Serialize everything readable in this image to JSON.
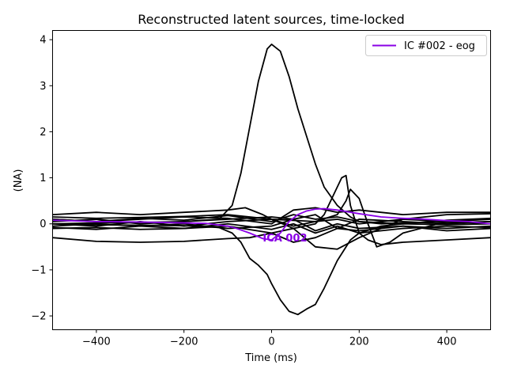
{
  "chart_data": {
    "type": "line",
    "title": "Reconstructed latent sources, time-locked",
    "xlabel": "Time (ms)",
    "ylabel": "(NA)",
    "xlim": [
      -500,
      500
    ],
    "ylim": [
      -2.3,
      4.2
    ],
    "xticks": [
      -400,
      -200,
      0,
      200,
      400
    ],
    "xtick_labels": [
      "−400",
      "−200",
      "0",
      "200",
      "400"
    ],
    "yticks": [
      -2,
      -1,
      0,
      1,
      2,
      3,
      4
    ],
    "ytick_labels": [
      "−2",
      "−1",
      "0",
      "1",
      "2",
      "3",
      "4"
    ],
    "grid": false,
    "legend_position": "top-right",
    "legend": [
      {
        "label": "IC #002 - eog",
        "color": "#8a00e6"
      }
    ],
    "annotations": [
      {
        "text": "ICA 002",
        "x": -20,
        "y": -0.3,
        "color": "#8a00e6"
      }
    ],
    "series": [
      {
        "name": "IC #002 - eog",
        "color": "#8a00e6",
        "x": [
          -500,
          -400,
          -300,
          -200,
          -150,
          -100,
          -80,
          -50,
          -20,
          0,
          20,
          40,
          60,
          80,
          100,
          120,
          150,
          200,
          250,
          300,
          350,
          400,
          450,
          500
        ],
        "y": [
          0.08,
          0.05,
          0.04,
          0.02,
          0.01,
          -0.05,
          -0.1,
          -0.2,
          -0.32,
          -0.35,
          -0.2,
          0.05,
          0.2,
          0.28,
          0.32,
          0.33,
          0.3,
          0.22,
          0.15,
          0.12,
          0.1,
          0.07,
          0.05,
          0.0
        ]
      },
      {
        "color": "#000000",
        "x": [
          -500,
          -400,
          -300,
          -200,
          -120,
          -90,
          -70,
          -50,
          -30,
          -10,
          0,
          20,
          40,
          60,
          80,
          100,
          120,
          150,
          180,
          200,
          250,
          300,
          400,
          500
        ],
        "y": [
          0.0,
          0.02,
          0.03,
          0.05,
          0.1,
          0.4,
          1.1,
          2.1,
          3.1,
          3.8,
          3.9,
          3.75,
          3.2,
          2.5,
          1.9,
          1.3,
          0.8,
          0.4,
          0.15,
          0.05,
          0.0,
          0.02,
          0.03,
          0.05
        ]
      },
      {
        "color": "#000000",
        "x": [
          -500,
          -400,
          -300,
          -200,
          -120,
          -90,
          -70,
          -50,
          -30,
          -10,
          0,
          20,
          40,
          60,
          80,
          100,
          120,
          150,
          180,
          200,
          250,
          300,
          400,
          500
        ],
        "y": [
          0.0,
          -0.02,
          -0.03,
          -0.04,
          -0.08,
          -0.2,
          -0.4,
          -0.75,
          -0.9,
          -1.1,
          -1.3,
          -1.65,
          -1.9,
          -1.97,
          -1.85,
          -1.75,
          -1.4,
          -0.8,
          -0.35,
          -0.2,
          -0.05,
          0.0,
          -0.02,
          0.0
        ]
      },
      {
        "color": "#000000",
        "x": [
          -500,
          -400,
          -300,
          -200,
          -100,
          -50,
          0,
          50,
          100,
          120,
          140,
          160,
          170,
          180,
          200,
          220,
          250,
          300,
          400,
          500
        ],
        "y": [
          -0.3,
          -0.38,
          -0.4,
          -0.38,
          -0.32,
          -0.3,
          -0.2,
          -0.1,
          0.0,
          0.2,
          0.6,
          1.0,
          1.05,
          0.4,
          -0.2,
          -0.35,
          -0.45,
          -0.4,
          -0.35,
          -0.3
        ]
      },
      {
        "color": "#000000",
        "x": [
          -500,
          -400,
          -300,
          -200,
          -100,
          0,
          100,
          150,
          170,
          180,
          200,
          220,
          240,
          270,
          300,
          400,
          500
        ],
        "y": [
          0.15,
          0.12,
          0.14,
          0.16,
          0.2,
          0.1,
          0.05,
          0.2,
          0.5,
          0.75,
          0.55,
          0.0,
          -0.5,
          -0.4,
          -0.2,
          0.05,
          0.1
        ]
      },
      {
        "color": "#000000",
        "x": [
          -500,
          -400,
          -300,
          -200,
          -100,
          -60,
          -20,
          0,
          50,
          100,
          150,
          200,
          300,
          400,
          500
        ],
        "y": [
          0.2,
          0.25,
          0.2,
          0.25,
          0.3,
          0.35,
          0.2,
          0.1,
          -0.1,
          -0.5,
          -0.55,
          -0.3,
          0.1,
          0.2,
          0.22
        ]
      },
      {
        "color": "#000000",
        "x": [
          -500,
          -400,
          -300,
          -200,
          -100,
          0,
          50,
          100,
          150,
          200,
          300,
          400,
          500
        ],
        "y": [
          0.1,
          0.05,
          0.1,
          0.15,
          0.12,
          0.0,
          0.3,
          0.35,
          0.25,
          0.3,
          0.2,
          0.25,
          0.25
        ]
      },
      {
        "color": "#000000",
        "x": [
          -500,
          -400,
          -300,
          -200,
          -100,
          0,
          50,
          100,
          150,
          200,
          300,
          400,
          500
        ],
        "y": [
          -0.1,
          -0.08,
          -0.12,
          -0.1,
          -0.05,
          -0.2,
          -0.4,
          -0.3,
          -0.1,
          -0.15,
          -0.05,
          -0.15,
          -0.1
        ]
      },
      {
        "color": "#000000",
        "x": [
          -500,
          -400,
          -300,
          -200,
          -100,
          0,
          50,
          100,
          150,
          200,
          300,
          400,
          500
        ],
        "y": [
          0.05,
          0.1,
          0.0,
          0.05,
          0.1,
          0.15,
          0.1,
          0.2,
          -0.1,
          0.1,
          0.05,
          0.0,
          0.05
        ]
      },
      {
        "color": "#000000",
        "x": [
          -500,
          -400,
          -300,
          -200,
          -100,
          0,
          50,
          100,
          150,
          200,
          300,
          400,
          500
        ],
        "y": [
          -0.05,
          0.0,
          -0.05,
          0.0,
          -0.1,
          -0.05,
          0.1,
          -0.15,
          0.0,
          -0.1,
          -0.05,
          -0.1,
          -0.05
        ]
      },
      {
        "color": "#000000",
        "x": [
          -500,
          -400,
          -300,
          -200,
          -100,
          0,
          50,
          100,
          150,
          200,
          300,
          400,
          500
        ],
        "y": [
          0.0,
          -0.05,
          0.05,
          -0.05,
          0.05,
          0.1,
          -0.05,
          0.05,
          0.1,
          0.0,
          0.1,
          0.05,
          0.0
        ]
      },
      {
        "color": "#000000",
        "x": [
          -500,
          -400,
          -300,
          -200,
          -100,
          0,
          50,
          100,
          150,
          200,
          300,
          400,
          500
        ],
        "y": [
          0.1,
          0.05,
          0.12,
          0.08,
          0.18,
          0.05,
          0.2,
          0.1,
          0.15,
          0.05,
          0.0,
          0.08,
          0.12
        ]
      },
      {
        "color": "#000000",
        "x": [
          -500,
          -400,
          -300,
          -200,
          -100,
          0,
          50,
          100,
          150,
          200,
          300,
          400,
          500
        ],
        "y": [
          -0.08,
          -0.12,
          -0.05,
          -0.1,
          0.0,
          -0.12,
          0.0,
          -0.2,
          -0.05,
          -0.2,
          -0.1,
          -0.05,
          -0.08
        ]
      }
    ]
  }
}
